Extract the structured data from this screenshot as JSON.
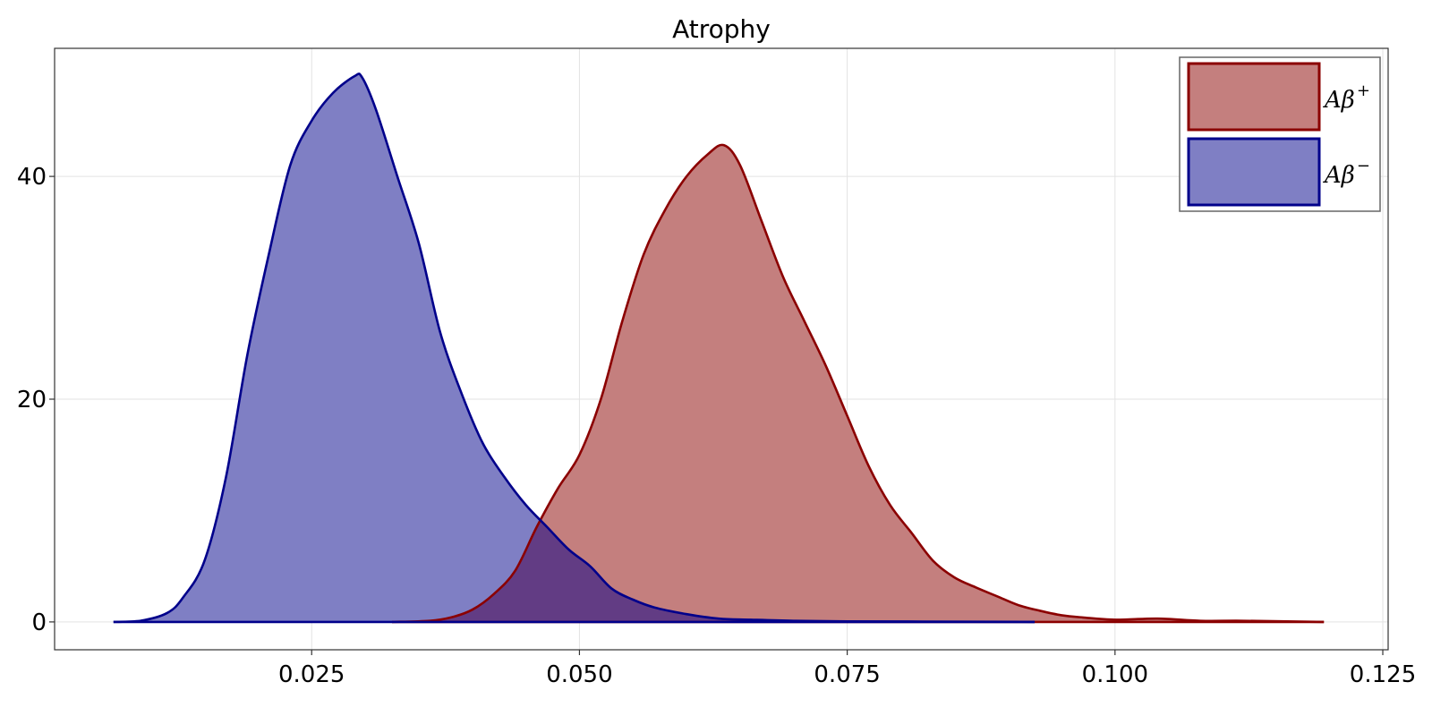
{
  "chart_data": {
    "type": "area",
    "title": "Atrophy",
    "xlabel": "",
    "ylabel": "",
    "xlim": [
      0.001,
      0.1255
    ],
    "ylim": [
      -2.5,
      51.5
    ],
    "xticks": [
      0.025,
      0.05,
      0.075,
      0.1,
      0.125
    ],
    "xtick_labels": [
      "0.025",
      "0.050",
      "0.075",
      "0.100",
      "0.125"
    ],
    "yticks": [
      0,
      20,
      40
    ],
    "ytick_labels": [
      "0",
      "20",
      "40"
    ],
    "grid": true,
    "legend_position": "top-right",
    "series": [
      {
        "name": "Aβ+",
        "legend_base": "Aβ",
        "legend_sup": "+",
        "line_color": "#8b0000",
        "fill_color": "#c47f7e",
        "x": [
          0.0325,
          0.036,
          0.038,
          0.04,
          0.042,
          0.044,
          0.046,
          0.048,
          0.05,
          0.052,
          0.054,
          0.056,
          0.058,
          0.06,
          0.062,
          0.0635,
          0.065,
          0.067,
          0.069,
          0.071,
          0.073,
          0.075,
          0.077,
          0.079,
          0.081,
          0.083,
          0.085,
          0.087,
          0.089,
          0.091,
          0.093,
          0.095,
          0.097,
          0.1,
          0.104,
          0.108,
          0.112,
          0.1195
        ],
        "y": [
          0,
          0.1,
          0.4,
          1.1,
          2.5,
          4.6,
          8.5,
          12.0,
          15.0,
          20.0,
          27.0,
          33.0,
          37.0,
          40.0,
          42.0,
          42.8,
          41.0,
          36.0,
          31.0,
          27.0,
          23.0,
          18.5,
          14.0,
          10.5,
          8.0,
          5.5,
          4.0,
          3.1,
          2.3,
          1.5,
          1.0,
          0.6,
          0.4,
          0.2,
          0.3,
          0.1,
          0.1,
          0
        ]
      },
      {
        "name": "Aβ−",
        "legend_base": "Aβ",
        "legend_sup": "−",
        "line_color": "#00008b",
        "fill_color": "#7f7fc4",
        "x": [
          0.0065,
          0.009,
          0.0115,
          0.013,
          0.015,
          0.017,
          0.019,
          0.021,
          0.023,
          0.025,
          0.027,
          0.029,
          0.0297,
          0.031,
          0.033,
          0.035,
          0.037,
          0.039,
          0.041,
          0.043,
          0.045,
          0.047,
          0.049,
          0.051,
          0.053,
          0.055,
          0.057,
          0.06,
          0.063,
          0.066,
          0.07,
          0.075,
          0.082,
          0.0925
        ],
        "y": [
          0,
          0.1,
          0.8,
          2.2,
          5.5,
          13.0,
          24.0,
          33.0,
          41.0,
          45.0,
          47.5,
          49.0,
          48.9,
          46.0,
          40.0,
          34.0,
          26.0,
          20.5,
          16.0,
          13.0,
          10.5,
          8.5,
          6.5,
          5.0,
          3.0,
          2.0,
          1.3,
          0.7,
          0.3,
          0.2,
          0.1,
          0.05,
          0.03,
          0
        ]
      }
    ],
    "overlap_fill_color": "#623c84"
  }
}
